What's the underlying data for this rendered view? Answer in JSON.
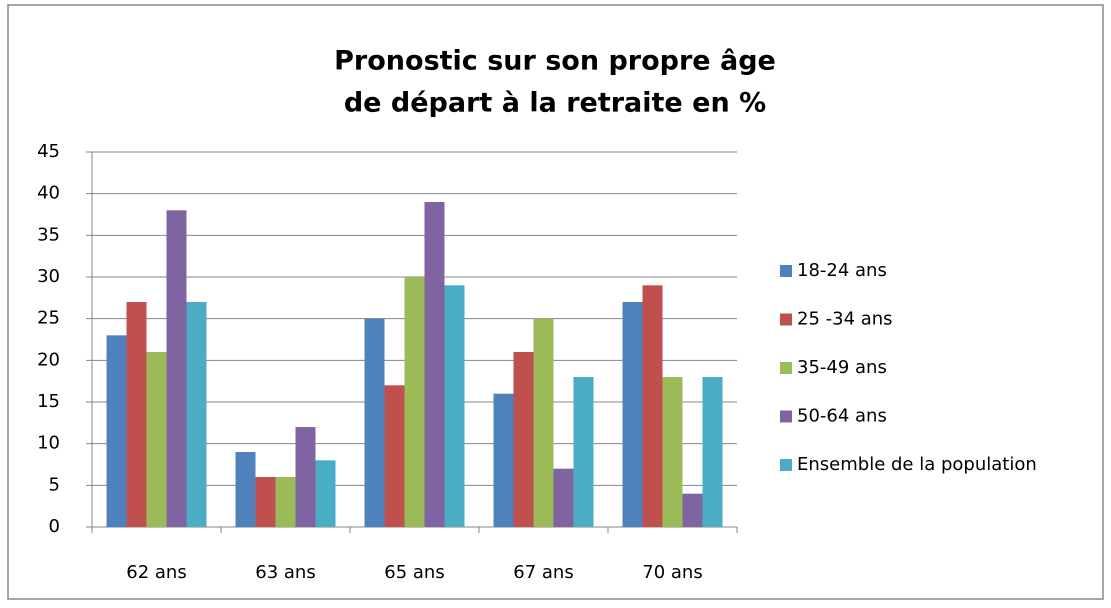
{
  "chart_data": {
    "type": "bar",
    "title": [
      "Pronostic sur son propre âge",
      "de départ à la retraite en %"
    ],
    "categories": [
      "62 ans",
      "63 ans",
      "65 ans",
      "67 ans",
      "70 ans"
    ],
    "series": [
      {
        "name": "18-24 ans",
        "color": "#4f81bd",
        "values": [
          23,
          9,
          25,
          16,
          27
        ]
      },
      {
        "name": "25 -34 ans",
        "color": "#c0504d",
        "values": [
          27,
          6,
          17,
          21,
          29
        ]
      },
      {
        "name": "35-49 ans",
        "color": "#9bbb59",
        "values": [
          21,
          6,
          30,
          25,
          18
        ]
      },
      {
        "name": "50-64 ans",
        "color": "#8064a2",
        "values": [
          38,
          12,
          39,
          7,
          4
        ]
      },
      {
        "name": "Ensemble de la population",
        "color": "#4bacc6",
        "values": [
          27,
          8,
          29,
          18,
          18
        ]
      }
    ],
    "ylim": [
      0,
      45
    ],
    "yticks": [
      0,
      5,
      10,
      15,
      20,
      25,
      30,
      35,
      40,
      45
    ],
    "grid": true,
    "legend": "right"
  }
}
